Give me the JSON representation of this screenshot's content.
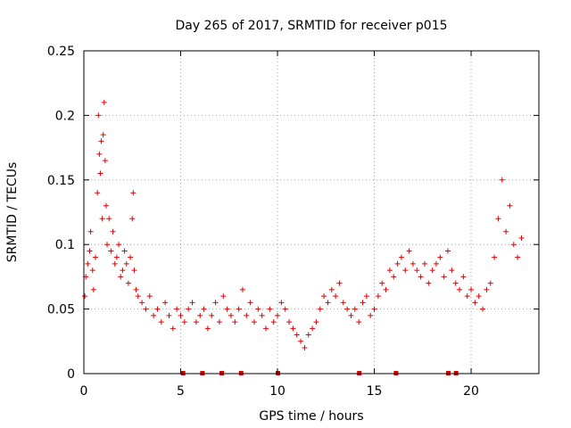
{
  "chart_data": {
    "type": "scatter",
    "title": "Day 265 of 2017, SRMTID for receiver p015",
    "xlabel": "GPS time / hours",
    "ylabel": "SRMTID / TECUs",
    "xlim": [
      0,
      23.5
    ],
    "ylim": [
      0,
      0.25
    ],
    "xticks": [
      0,
      5,
      10,
      15,
      20
    ],
    "xtick_labels": [
      "0",
      "5",
      "10",
      "15",
      "20"
    ],
    "yticks": [
      0,
      0.05,
      0.1,
      0.15,
      0.2,
      0.25
    ],
    "ytick_labels": [
      "0",
      "0.05",
      "0.1",
      "0.15",
      "0.2",
      "0.25"
    ],
    "grid": true,
    "marker": "plus",
    "series": [
      {
        "name": "SRMTID",
        "color": "#e00000",
        "points": [
          [
            0.05,
            0.06
          ],
          [
            0.1,
            0.075
          ],
          [
            0.2,
            0.085
          ],
          [
            0.3,
            0.095
          ],
          [
            0.35,
            0.11
          ],
          [
            0.45,
            0.08
          ],
          [
            0.5,
            0.065
          ],
          [
            0.6,
            0.09
          ],
          [
            0.7,
            0.14
          ],
          [
            0.75,
            0.2
          ],
          [
            0.8,
            0.17
          ],
          [
            0.85,
            0.155
          ],
          [
            0.9,
            0.18
          ],
          [
            0.95,
            0.12
          ],
          [
            1.0,
            0.185
          ],
          [
            1.05,
            0.21
          ],
          [
            1.1,
            0.165
          ],
          [
            1.15,
            0.13
          ],
          [
            1.2,
            0.1
          ],
          [
            1.3,
            0.12
          ],
          [
            1.4,
            0.095
          ],
          [
            1.5,
            0.11
          ],
          [
            1.6,
            0.085
          ],
          [
            1.7,
            0.09
          ],
          [
            1.8,
            0.1
          ],
          [
            1.9,
            0.075
          ],
          [
            2.0,
            0.08
          ],
          [
            2.1,
            0.095
          ],
          [
            2.2,
            0.085
          ],
          [
            2.3,
            0.07
          ],
          [
            2.4,
            0.09
          ],
          [
            2.5,
            0.12
          ],
          [
            2.55,
            0.14
          ],
          [
            2.6,
            0.08
          ],
          [
            2.7,
            0.065
          ],
          [
            2.8,
            0.06
          ],
          [
            3.0,
            0.055
          ],
          [
            3.2,
            0.05
          ],
          [
            3.4,
            0.06
          ],
          [
            3.6,
            0.045
          ],
          [
            3.8,
            0.05
          ],
          [
            4.0,
            0.04
          ],
          [
            4.2,
            0.055
          ],
          [
            4.4,
            0.045
          ],
          [
            4.6,
            0.035
          ],
          [
            4.8,
            0.05
          ],
          [
            5.0,
            0.045
          ],
          [
            5.2,
            0.04
          ],
          [
            5.4,
            0.05
          ],
          [
            5.6,
            0.055
          ],
          [
            5.8,
            0.04
          ],
          [
            6.0,
            0.045
          ],
          [
            6.2,
            0.05
          ],
          [
            6.4,
            0.035
          ],
          [
            6.6,
            0.045
          ],
          [
            6.8,
            0.055
          ],
          [
            7.0,
            0.04
          ],
          [
            7.2,
            0.06
          ],
          [
            7.4,
            0.05
          ],
          [
            7.6,
            0.045
          ],
          [
            7.8,
            0.04
          ],
          [
            8.0,
            0.05
          ],
          [
            8.2,
            0.065
          ],
          [
            8.4,
            0.045
          ],
          [
            8.6,
            0.055
          ],
          [
            8.8,
            0.04
          ],
          [
            9.0,
            0.05
          ],
          [
            9.2,
            0.045
          ],
          [
            9.4,
            0.035
          ],
          [
            9.6,
            0.05
          ],
          [
            9.8,
            0.04
          ],
          [
            10.0,
            0.045
          ],
          [
            10.2,
            0.055
          ],
          [
            10.4,
            0.05
          ],
          [
            10.6,
            0.04
          ],
          [
            10.8,
            0.035
          ],
          [
            11.0,
            0.03
          ],
          [
            11.2,
            0.025
          ],
          [
            11.4,
            0.02
          ],
          [
            11.6,
            0.03
          ],
          [
            11.8,
            0.035
          ],
          [
            12.0,
            0.04
          ],
          [
            12.2,
            0.05
          ],
          [
            12.4,
            0.06
          ],
          [
            12.6,
            0.055
          ],
          [
            12.8,
            0.065
          ],
          [
            13.0,
            0.06
          ],
          [
            13.2,
            0.07
          ],
          [
            13.4,
            0.055
          ],
          [
            13.6,
            0.05
          ],
          [
            13.8,
            0.045
          ],
          [
            14.0,
            0.05
          ],
          [
            14.2,
            0.04
          ],
          [
            14.4,
            0.055
          ],
          [
            14.6,
            0.06
          ],
          [
            14.8,
            0.045
          ],
          [
            15.0,
            0.05
          ],
          [
            15.2,
            0.06
          ],
          [
            15.4,
            0.07
          ],
          [
            15.6,
            0.065
          ],
          [
            15.8,
            0.08
          ],
          [
            16.0,
            0.075
          ],
          [
            16.2,
            0.085
          ],
          [
            16.4,
            0.09
          ],
          [
            16.6,
            0.08
          ],
          [
            16.8,
            0.095
          ],
          [
            17.0,
            0.085
          ],
          [
            17.2,
            0.08
          ],
          [
            17.4,
            0.075
          ],
          [
            17.6,
            0.085
          ],
          [
            17.8,
            0.07
          ],
          [
            18.0,
            0.08
          ],
          [
            18.2,
            0.085
          ],
          [
            18.4,
            0.09
          ],
          [
            18.6,
            0.075
          ],
          [
            18.8,
            0.095
          ],
          [
            19.0,
            0.08
          ],
          [
            19.2,
            0.07
          ],
          [
            19.4,
            0.065
          ],
          [
            19.6,
            0.075
          ],
          [
            19.8,
            0.06
          ],
          [
            20.0,
            0.065
          ],
          [
            20.2,
            0.055
          ],
          [
            20.4,
            0.06
          ],
          [
            20.6,
            0.05
          ],
          [
            20.8,
            0.065
          ],
          [
            21.0,
            0.07
          ],
          [
            21.2,
            0.09
          ],
          [
            21.4,
            0.12
          ],
          [
            21.6,
            0.15
          ],
          [
            21.8,
            0.11
          ],
          [
            22.0,
            0.13
          ],
          [
            22.2,
            0.1
          ],
          [
            22.4,
            0.09
          ],
          [
            22.6,
            0.105
          ]
        ]
      }
    ],
    "data_gap_markers_x": [
      5.1,
      6.1,
      7.1,
      8.1,
      10.0,
      14.2,
      16.1,
      18.8,
      19.2
    ]
  }
}
